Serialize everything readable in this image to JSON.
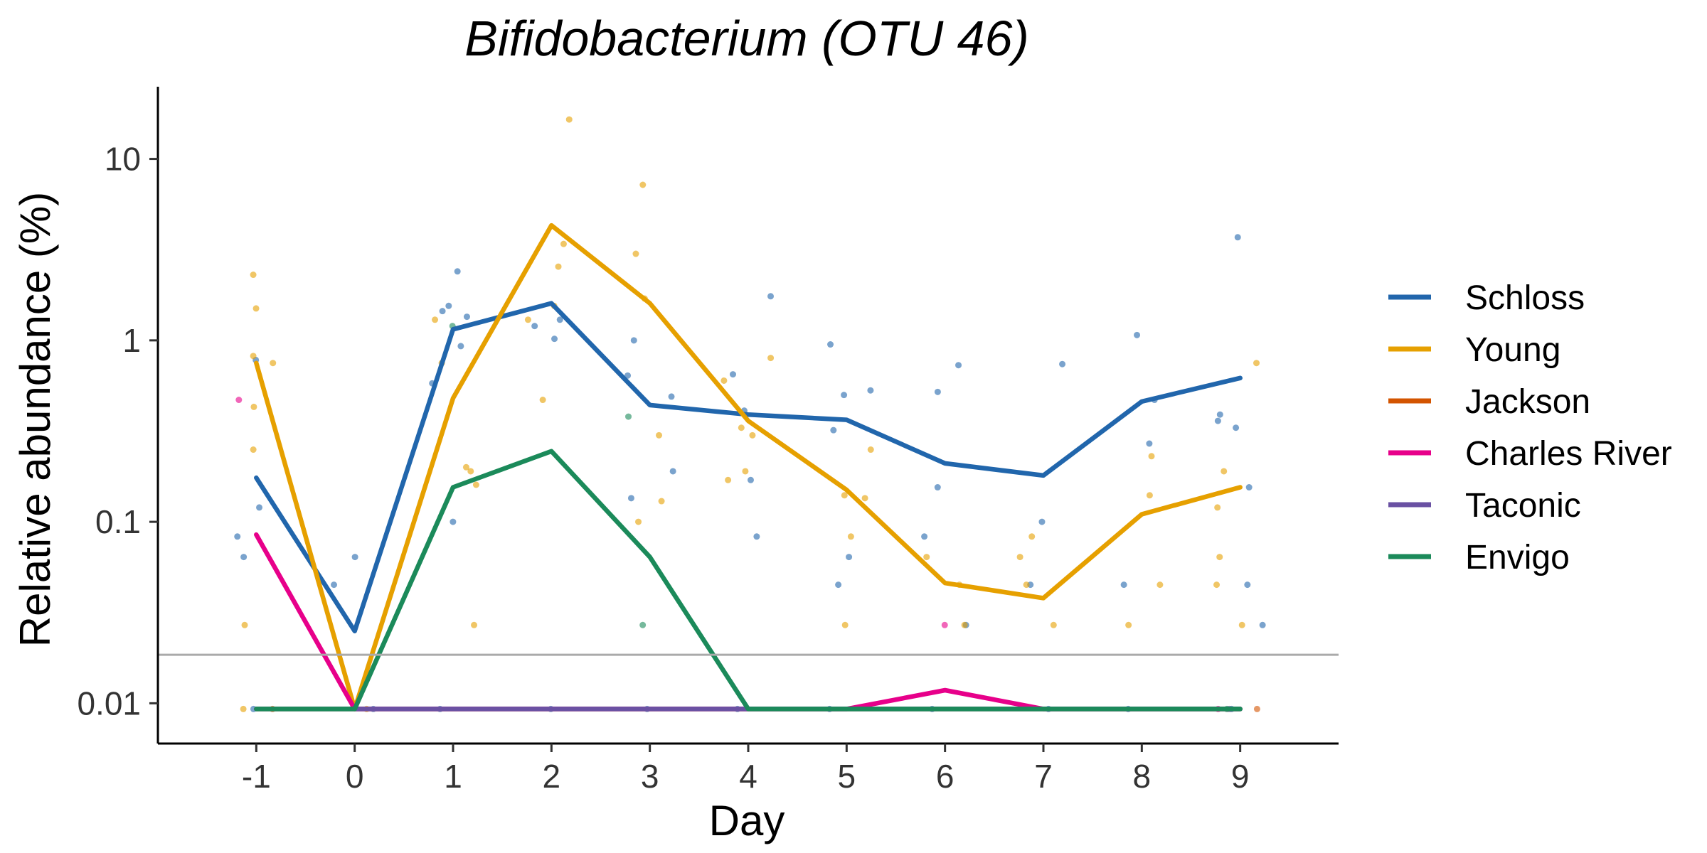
{
  "chart_data": {
    "type": "line",
    "title": "Bifidobacterium (OTU 46)",
    "xlabel": "Day",
    "ylabel": "Relative abundance (%)",
    "x": [
      -1,
      0,
      1,
      2,
      3,
      4,
      5,
      6,
      7,
      8,
      9
    ],
    "x_tick_labels": [
      "-1",
      "0",
      "1",
      "2",
      "3",
      "4",
      "5",
      "6",
      "7",
      "8",
      "9"
    ],
    "xlim": [
      -2,
      10
    ],
    "y_scale": "log",
    "ylim": [
      0.006,
      25
    ],
    "y_ticks": [
      0.01,
      0.1,
      1,
      10
    ],
    "y_tick_labels": [
      "0.01",
      "0.1",
      "1",
      "10"
    ],
    "limit_of_detection": 0.0185,
    "legend_position": "right",
    "grid": false,
    "series": [
      {
        "name": "Schloss",
        "color": "#2166AC",
        "values": [
          0.175,
          0.025,
          1.15,
          1.6,
          0.44,
          0.39,
          0.365,
          0.21,
          0.18,
          0.46,
          0.62
        ],
        "points": [
          [
            -1,
            0.78
          ],
          [
            -1,
            0.12
          ],
          [
            -1,
            0.083
          ],
          [
            -1,
            0.064
          ],
          [
            -1,
            0.0093
          ],
          [
            0,
            0.064
          ],
          [
            0,
            0.045
          ],
          [
            0,
            0.0093
          ],
          [
            1,
            2.4
          ],
          [
            1,
            1.55
          ],
          [
            1,
            1.45
          ],
          [
            1,
            1.35
          ],
          [
            1,
            0.93
          ],
          [
            1,
            0.58
          ],
          [
            1,
            0.1
          ],
          [
            1,
            0.0093
          ],
          [
            2,
            1.3
          ],
          [
            2,
            1.2
          ],
          [
            2,
            1.02
          ],
          [
            2,
            0.0093
          ],
          [
            3,
            1.0
          ],
          [
            3,
            0.64
          ],
          [
            3,
            0.49
          ],
          [
            3,
            0.19
          ],
          [
            3,
            0.135
          ],
          [
            3,
            0.0093
          ],
          [
            4,
            1.75
          ],
          [
            4,
            0.65
          ],
          [
            4,
            0.41
          ],
          [
            4,
            0.17
          ],
          [
            4,
            0.083
          ],
          [
            4,
            0.0093
          ],
          [
            5,
            0.95
          ],
          [
            5,
            0.53
          ],
          [
            5,
            0.5
          ],
          [
            5,
            0.32
          ],
          [
            5,
            0.064
          ],
          [
            5,
            0.045
          ],
          [
            5,
            0.0093
          ],
          [
            6,
            0.73
          ],
          [
            6,
            0.52
          ],
          [
            6,
            0.155
          ],
          [
            6,
            0.083
          ],
          [
            6,
            0.027
          ],
          [
            6,
            0.0093
          ],
          [
            7,
            0.74
          ],
          [
            7,
            0.1
          ],
          [
            7,
            0.045
          ],
          [
            7,
            0.0093
          ],
          [
            8,
            1.07
          ],
          [
            8,
            0.47
          ],
          [
            8,
            0.27
          ],
          [
            8,
            0.045
          ],
          [
            8,
            0.0093
          ],
          [
            9,
            3.7
          ],
          [
            9,
            0.39
          ],
          [
            9,
            0.36
          ],
          [
            9,
            0.33
          ],
          [
            9,
            0.155
          ],
          [
            9,
            0.045
          ],
          [
            9,
            0.027
          ],
          [
            9,
            0.0093
          ]
        ]
      },
      {
        "name": "Young",
        "color": "#E6A000",
        "values": [
          0.75,
          0.0093,
          0.48,
          4.3,
          1.6,
          0.36,
          0.15,
          0.046,
          0.038,
          0.11,
          0.155
        ],
        "points": [
          [
            -1,
            2.3
          ],
          [
            -1,
            1.5
          ],
          [
            -1,
            0.82
          ],
          [
            -1,
            0.75
          ],
          [
            -1,
            0.43
          ],
          [
            -1,
            0.25
          ],
          [
            -1,
            0.027
          ],
          [
            -1,
            0.0093
          ],
          [
            0,
            0.0093
          ],
          [
            1,
            1.3
          ],
          [
            1,
            0.75
          ],
          [
            1,
            0.2
          ],
          [
            1,
            0.19
          ],
          [
            1,
            0.16
          ],
          [
            1,
            0.027
          ],
          [
            2,
            16.5
          ],
          [
            2,
            3.4
          ],
          [
            2,
            2.55
          ],
          [
            2,
            1.55
          ],
          [
            2,
            1.3
          ],
          [
            2,
            0.47
          ],
          [
            3,
            7.2
          ],
          [
            3,
            3.0
          ],
          [
            3,
            1.7
          ],
          [
            3,
            0.3
          ],
          [
            3,
            0.13
          ],
          [
            3,
            0.1
          ],
          [
            4,
            0.8
          ],
          [
            4,
            0.6
          ],
          [
            4,
            0.33
          ],
          [
            4,
            0.3
          ],
          [
            4,
            0.19
          ],
          [
            4,
            0.17
          ],
          [
            5,
            0.25
          ],
          [
            5,
            0.14
          ],
          [
            5,
            0.135
          ],
          [
            5,
            0.083
          ],
          [
            5,
            0.027
          ],
          [
            6,
            0.064
          ],
          [
            6,
            0.045
          ],
          [
            6,
            0.027
          ],
          [
            7,
            0.083
          ],
          [
            7,
            0.064
          ],
          [
            7,
            0.045
          ],
          [
            7,
            0.027
          ],
          [
            8,
            0.23
          ],
          [
            8,
            0.14
          ],
          [
            8,
            0.045
          ],
          [
            8,
            0.027
          ],
          [
            9,
            0.75
          ],
          [
            9,
            0.19
          ],
          [
            9,
            0.12
          ],
          [
            9,
            0.064
          ],
          [
            9,
            0.045
          ],
          [
            9,
            0.027
          ]
        ]
      },
      {
        "name": "Jackson",
        "color": "#D35400",
        "values": [
          0.0093,
          0.0093,
          0.0093,
          0.0093,
          0.0093,
          0.0093,
          0.0093,
          0.0093,
          0.0093,
          0.0093,
          0.0093
        ],
        "points": [
          [
            -1,
            0.0093
          ],
          [
            9,
            0.0093
          ]
        ]
      },
      {
        "name": "Charles River",
        "color": "#E7008A",
        "values": [
          0.085,
          0.0093,
          0.0093,
          0.0093,
          0.0093,
          0.0093,
          0.0093,
          0.0118,
          0.0093,
          0.0093,
          0.0093
        ],
        "points": [
          [
            -1,
            0.47
          ],
          [
            6,
            0.027
          ],
          [
            9,
            0.0093
          ]
        ]
      },
      {
        "name": "Taconic",
        "color": "#6A51A3",
        "values": [
          0.0093,
          0.0093,
          0.0093,
          0.0093,
          0.0093,
          0.0093,
          0.0093,
          0.0093,
          0.0093,
          0.0093,
          0.0093
        ],
        "points": [
          [
            9,
            0.0093
          ]
        ]
      },
      {
        "name": "Envigo",
        "color": "#1B8A5A",
        "values": [
          0.0093,
          0.0093,
          0.155,
          0.245,
          0.064,
          0.0093,
          0.0093,
          0.0093,
          0.0093,
          0.0093,
          0.0093
        ],
        "points": [
          [
            1,
            1.2
          ],
          [
            3,
            0.38
          ],
          [
            3,
            0.027
          ],
          [
            9,
            0.0093
          ]
        ]
      }
    ]
  }
}
